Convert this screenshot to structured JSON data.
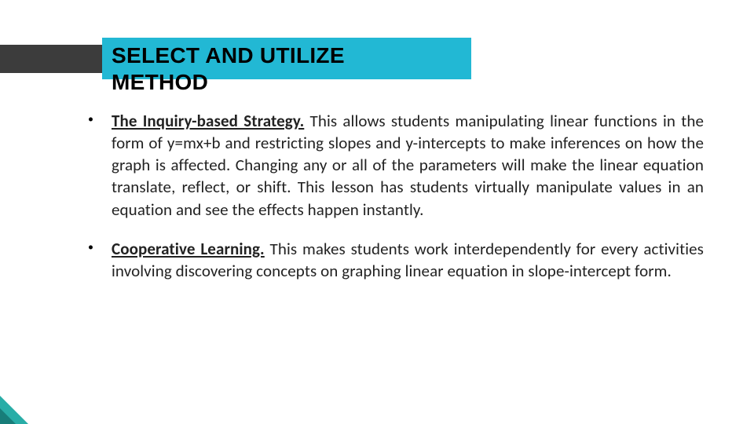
{
  "slide": {
    "title_line1": "SELECT AND UTILIZE",
    "title_line2": "METHOD",
    "title_font_size_pt": 28,
    "title_font_weight": 700,
    "title_color": "#000000",
    "title_ribbon_color": "#22b8d4",
    "left_bar_color": "#3c3c3c",
    "body_font_size_pt": 21,
    "body_color": "#222222",
    "background_color": "#ffffff",
    "corner_accent_outer": "#29ada7",
    "corner_accent_inner": "#187d79",
    "bullets": [
      {
        "lead": "The Inquiry-based Strategy.",
        "text": " This allows students manipulating linear functions in the form of y=mx+b and restricting slopes and y-intercepts to make inferences on how the graph is affected. Changing any or all of the parameters will make the linear equation translate, reflect, or shift. This lesson has students virtually manipulate values in an equation and see the effects happen instantly."
      },
      {
        "lead": "Cooperative Learning.",
        "text": " This makes students work interdependently for every activities involving discovering concepts on graphing linear equation in slope-intercept form."
      }
    ]
  }
}
